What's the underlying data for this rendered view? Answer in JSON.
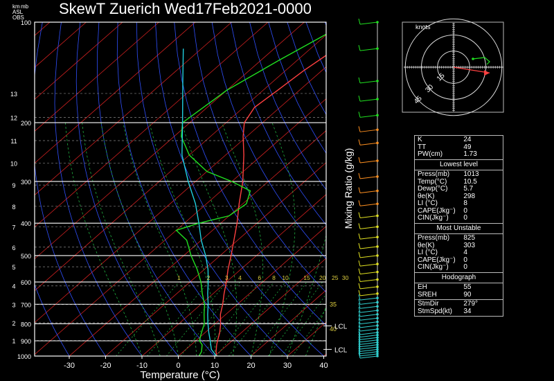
{
  "title": "SkewT Zuerich Wed17Feb2021-0000",
  "corner_labels": [
    "km",
    "mb",
    "ASL",
    "OBS"
  ],
  "chart_data": {
    "type": "line",
    "title": "SkewT Zuerich Wed17Feb2021-0000",
    "xlabel": "Temperature (°C)",
    "ylabel": "",
    "right_axis_label": "Mixing Ratio (g/kg)",
    "x_ticks": [
      -30,
      -20,
      -10,
      0,
      10,
      20,
      30,
      40
    ],
    "pressure_ticks": [
      100,
      200,
      300,
      400,
      500,
      600,
      700,
      800,
      900,
      1000
    ],
    "km_ticks": [
      1,
      2,
      3,
      4,
      5,
      6,
      7,
      8,
      9,
      10,
      11,
      12,
      13
    ],
    "mixing_ratio_labels": [
      "1",
      "2",
      "3",
      "4",
      "6",
      "8",
      "10",
      "15",
      "20",
      "25",
      "30"
    ],
    "theta_e_labels": [
      "35",
      "40"
    ],
    "lcl_labels": [
      "LCL",
      "LCL"
    ],
    "lcl_pressures": [
      812,
      955
    ],
    "ylim": [
      1000,
      100
    ],
    "xlim": [
      -40,
      40
    ],
    "series": [
      {
        "role": "temperature",
        "color": "#ff4040",
        "points": [
          [
            1000,
            10.5
          ],
          [
            970,
            9
          ],
          [
            925,
            7
          ],
          [
            900,
            6
          ],
          [
            850,
            4
          ],
          [
            800,
            1.5
          ],
          [
            750,
            -1.5
          ],
          [
            700,
            -4
          ],
          [
            650,
            -7
          ],
          [
            600,
            -10
          ],
          [
            550,
            -13.5
          ],
          [
            500,
            -17
          ],
          [
            450,
            -21
          ],
          [
            400,
            -25.5
          ],
          [
            350,
            -31
          ],
          [
            300,
            -37
          ],
          [
            250,
            -45
          ],
          [
            220,
            -51
          ],
          [
            200,
            -55
          ],
          [
            180,
            -57
          ],
          [
            160,
            -56
          ],
          [
            140,
            -55
          ],
          [
            120,
            -53
          ],
          [
            100,
            -50
          ]
        ]
      },
      {
        "role": "dewpoint",
        "color": "#20e020",
        "points": [
          [
            1000,
            5.7
          ],
          [
            970,
            5
          ],
          [
            925,
            3
          ],
          [
            900,
            1
          ],
          [
            850,
            -1
          ],
          [
            800,
            -3
          ],
          [
            750,
            -6
          ],
          [
            700,
            -9
          ],
          [
            650,
            -13
          ],
          [
            600,
            -17
          ],
          [
            550,
            -22
          ],
          [
            500,
            -28
          ],
          [
            450,
            -34
          ],
          [
            420,
            -40
          ],
          [
            400,
            -36
          ],
          [
            380,
            -30
          ],
          [
            350,
            -29
          ],
          [
            320,
            -32
          ],
          [
            300,
            -40
          ],
          [
            280,
            -50
          ],
          [
            250,
            -60
          ],
          [
            220,
            -68
          ],
          [
            200,
            -72
          ],
          [
            160,
            -70
          ],
          [
            130,
            -65
          ],
          [
            100,
            -58
          ]
        ]
      },
      {
        "role": "parcel",
        "color": "#20d0e0",
        "points": [
          [
            1000,
            10.5
          ],
          [
            955,
            7
          ],
          [
            900,
            4
          ],
          [
            850,
            1
          ],
          [
            800,
            -2
          ],
          [
            750,
            -5
          ],
          [
            700,
            -8
          ],
          [
            650,
            -11.5
          ],
          [
            600,
            -15
          ],
          [
            550,
            -19
          ],
          [
            500,
            -24
          ],
          [
            450,
            -30
          ],
          [
            400,
            -36
          ],
          [
            350,
            -43
          ],
          [
            300,
            -52
          ],
          [
            250,
            -62
          ],
          [
            200,
            -72
          ],
          [
            150,
            -85
          ],
          [
            120,
            -95
          ]
        ]
      }
    ],
    "wind_barb_pressures": [
      1000,
      985,
      970,
      955,
      940,
      925,
      910,
      895,
      880,
      865,
      850,
      830,
      810,
      790,
      770,
      750,
      730,
      710,
      690,
      670,
      650,
      620,
      590,
      560,
      530,
      500,
      470,
      440,
      410,
      380,
      350,
      320,
      290,
      260,
      230,
      210,
      190,
      170,
      150,
      120,
      100
    ],
    "hodograph": {
      "unit_label": "knots",
      "ring_labels": [
        "15",
        "30",
        "45"
      ],
      "ring_speeds": [
        15,
        30,
        45
      ],
      "storm_motion": {
        "direction_deg": 279,
        "speed_kt": 34
      }
    }
  },
  "indices": {
    "top": [
      {
        "label": "K",
        "value": "24"
      },
      {
        "label": "TT",
        "value": "49"
      },
      {
        "label": "PW(cm)",
        "value": "1.73"
      }
    ],
    "lowest_header": "Lowest level",
    "lowest": [
      {
        "label": "Press(mb)",
        "value": "1013"
      },
      {
        "label": "Temp(°C)",
        "value": "10.5"
      },
      {
        "label": "Dewp(°C)",
        "value": "5.7"
      },
      {
        "label": "θe(K)",
        "value": "298"
      },
      {
        "label": "LI (°C)",
        "value": "8"
      },
      {
        "label": "CAPE(Jkg⁻)",
        "value": "0"
      },
      {
        "label": "CIN(Jkg⁻)",
        "value": "0"
      }
    ],
    "unstable_header": "Most Unstable",
    "unstable": [
      {
        "label": "Press(mb)",
        "value": "825"
      },
      {
        "label": "θe(K)",
        "value": "303"
      },
      {
        "label": "LI (°C)",
        "value": "4"
      },
      {
        "label": "CAPE(Jkg⁻)",
        "value": "0"
      },
      {
        "label": "CIN(Jkg⁻)",
        "value": "0"
      }
    ],
    "hodo_header": "Hodograph",
    "hodo": [
      {
        "label": "EH",
        "value": "55"
      },
      {
        "label": "SREH",
        "value": "90"
      }
    ],
    "storm": [
      {
        "label": "StmDir",
        "value": "279°"
      },
      {
        "label": "StmSpd(kt)",
        "value": "34"
      }
    ]
  },
  "colors": {
    "isotherm": "#d02020",
    "dry_adiabat": "#3050ff",
    "moist_adiabat": "#20b040",
    "mixing_ratio": "#20b040",
    "isobar": "#ffffff",
    "label_yellow": "#e0d040"
  }
}
